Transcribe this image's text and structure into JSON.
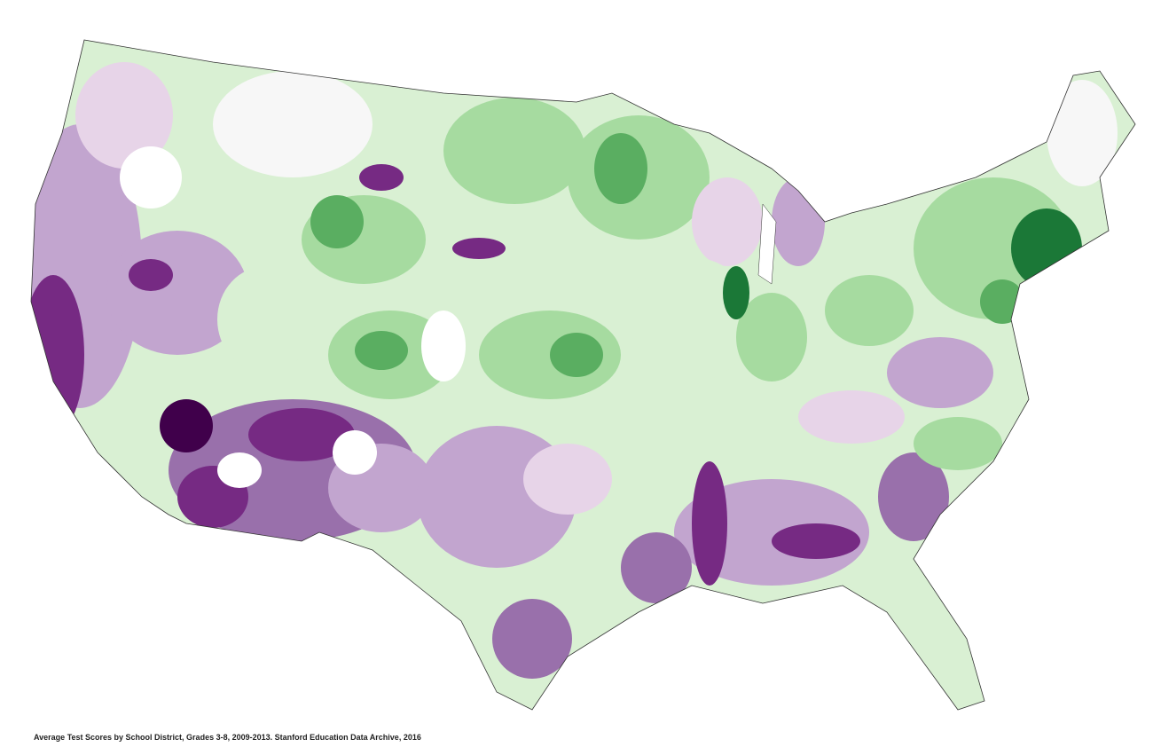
{
  "caption": "Average Test Scores by School District, Grades 3-8, 2009-2013. Stanford Education Data Archive, 2016"
}
